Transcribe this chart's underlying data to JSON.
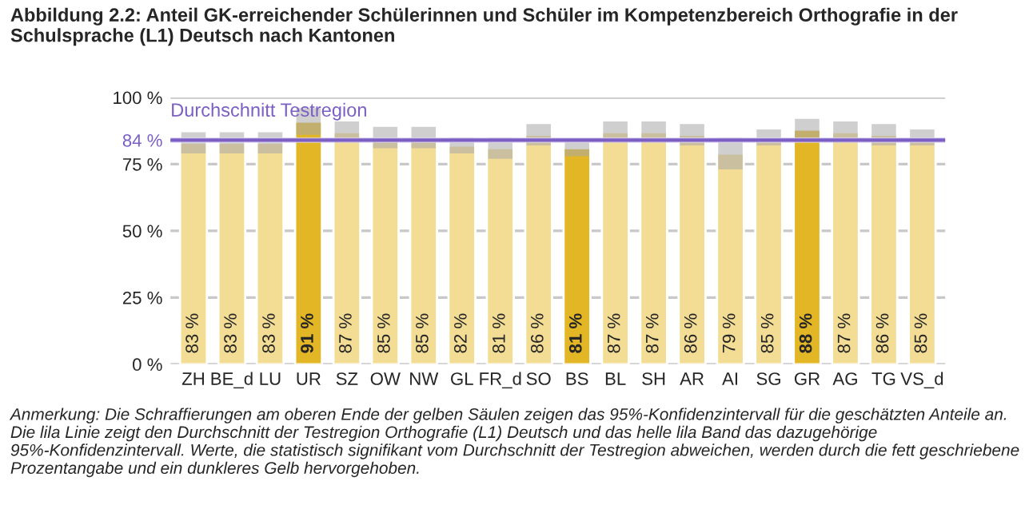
{
  "chart_data": {
    "type": "bar",
    "title": "Abbildung 2.2: Anteil GK-erreichender Schülerinnen und Schüler im Kompetenzbereich Orthografie in der Schulsprache (L1) Deutsch nach Kantonen",
    "categories": [
      "ZH",
      "BE_d",
      "LU",
      "UR",
      "SZ",
      "OW",
      "NW",
      "GL",
      "FR_d",
      "SO",
      "BS",
      "BL",
      "SH",
      "AR",
      "AI",
      "SG",
      "GR",
      "AG",
      "TG",
      "VS_d"
    ],
    "values": [
      83,
      83,
      83,
      91,
      87,
      85,
      85,
      82,
      81,
      86,
      81,
      87,
      87,
      86,
      79,
      85,
      88,
      87,
      86,
      85
    ],
    "errors": [
      4,
      4,
      4,
      5,
      4,
      4,
      4,
      3,
      4,
      4,
      3,
      4,
      4,
      4,
      6,
      3,
      4,
      4,
      4,
      3
    ],
    "value_labels": [
      "83 %",
      "83 %",
      "83 %",
      "91 %",
      "87 %",
      "85 %",
      "85 %",
      "82 %",
      "81 %",
      "86 %",
      "81 %",
      "87 %",
      "87 %",
      "86 %",
      "79 %",
      "85 %",
      "88 %",
      "87 %",
      "86 %",
      "85 %"
    ],
    "colors": [
      "#f3dc94",
      "#f3dc94",
      "#f3dc94",
      "#e3b626",
      "#f3dc94",
      "#f3dc94",
      "#f3dc94",
      "#f3dc94",
      "#f3dc94",
      "#f3dc94",
      "#e3b626",
      "#f3dc94",
      "#f3dc94",
      "#f3dc94",
      "#f3dc94",
      "#f3dc94",
      "#e3b626",
      "#f3dc94",
      "#f3dc94",
      "#f3dc94"
    ],
    "ylim": [
      0,
      100
    ],
    "yticks": [
      {
        "value": 0,
        "label": "0 %"
      },
      {
        "value": 25,
        "label": "25 %"
      },
      {
        "value": 50,
        "label": "50 %"
      },
      {
        "value": 75,
        "label": "75 %"
      },
      {
        "value": 84,
        "label": "84 %"
      },
      {
        "value": 100,
        "label": "100 %"
      }
    ],
    "ref_lines": [
      {
        "axis": "y",
        "value": 84,
        "label": "Durchschnitt Testregion",
        "color": "#7b5fc4"
      }
    ],
    "bands": [
      {
        "axis": "y",
        "from": 83,
        "to": 85,
        "color": "#d9cff0"
      }
    ],
    "grid": "y",
    "annotations": [
      "Anmerkung: Die Schraffierungen am oberen Ende der gelben Säulen zeigen das 95%-Konfidenzintervall für die geschätzten Anteile an. Die lila Linie zeigt den Durchschnitt der Testregion Orthografie (L1) Deutsch und das helle lila Band das dazugehörige 95%-Konfidenzintervall. Werte, die statistisch signifikant vom Durchschnitt der Testregion abweichen, werden durch die fett geschriebene Prozentangabe und ein dunkleres Gelb hervorgehoben."
    ]
  }
}
